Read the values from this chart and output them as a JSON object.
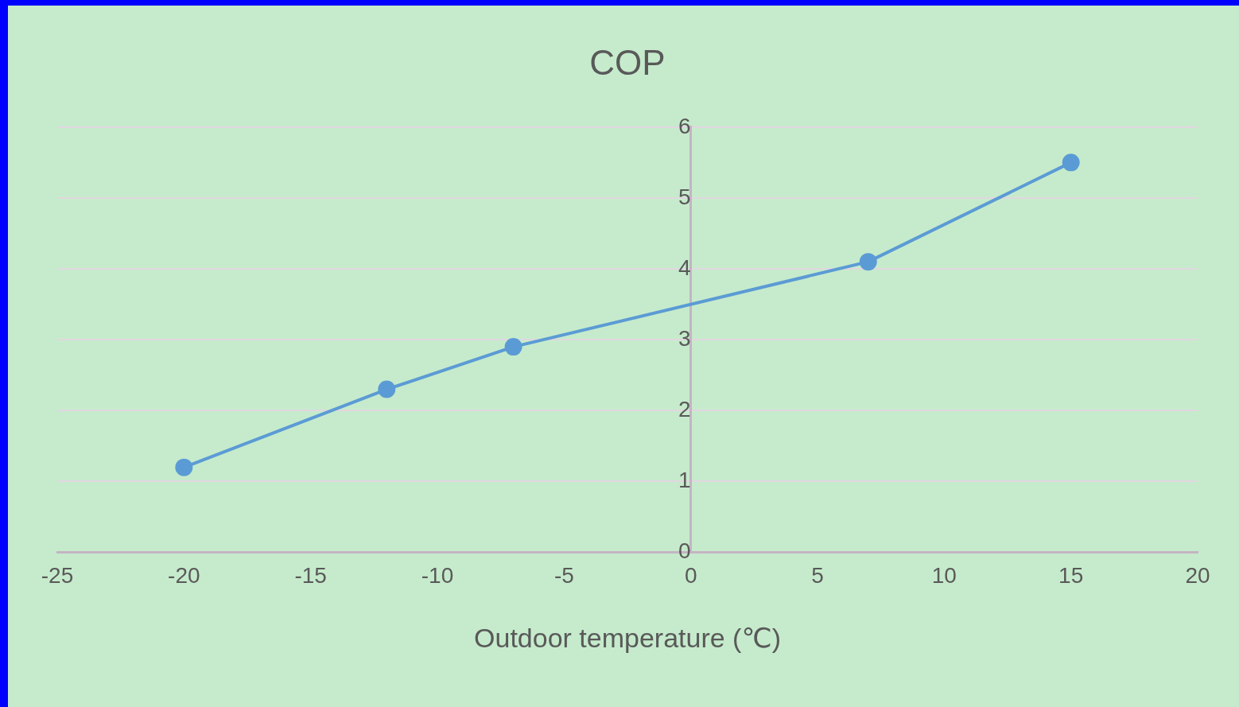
{
  "chart_data": {
    "type": "line",
    "title": "COP",
    "xlabel": "Outdoor temperature (℃)",
    "x": [
      -20,
      -12,
      -7,
      7,
      15
    ],
    "series": [
      {
        "color": "#5b9bd5",
        "values": [
          1.2,
          2.3,
          2.9,
          4.1,
          5.5
        ]
      }
    ],
    "xlim": [
      -25,
      20
    ],
    "xticks": [
      -25,
      -20,
      -15,
      -10,
      -5,
      0,
      5,
      10,
      15,
      20
    ],
    "ylim": [
      0,
      6
    ],
    "yticks": [
      0,
      1,
      2,
      3,
      4,
      5,
      6
    ],
    "grid": "y",
    "legend": false,
    "marker": "circle",
    "line_style": "solid"
  }
}
